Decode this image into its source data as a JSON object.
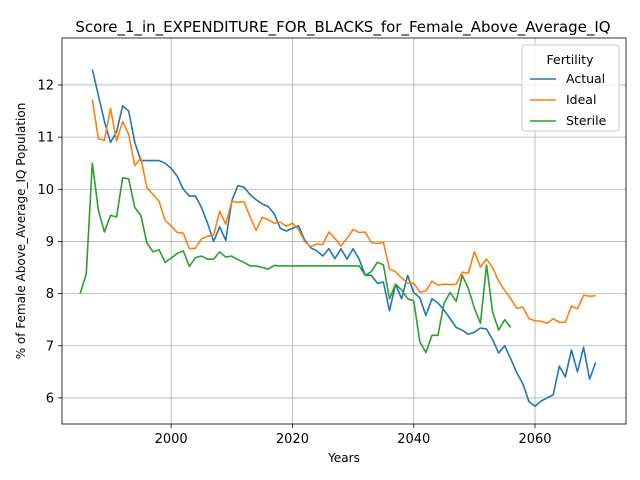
{
  "chart_data": {
    "type": "line",
    "title": "Score_1_in_EXPENDITURE_FOR_BLACKS_for_Female_Above_Average_IQ",
    "xlabel": "Years",
    "ylabel": "% of Female Above_Average_IQ Population",
    "xlim": [
      1982,
      2075
    ],
    "ylim": [
      5.5,
      12.9
    ],
    "xticks": [
      2000,
      2020,
      2040,
      2060
    ],
    "yticks": [
      6,
      7,
      8,
      9,
      10,
      11,
      12
    ],
    "grid": true,
    "legend": {
      "title": "Fertility",
      "position": "top-right"
    },
    "series": [
      {
        "name": "Actual",
        "color": "#1f77b4",
        "x": [
          1987,
          1988,
          1989,
          1990,
          1991,
          1992,
          1993,
          1994,
          1995,
          1996,
          1997,
          1998,
          1999,
          2000,
          2001,
          2002,
          2003,
          2004,
          2005,
          2006,
          2007,
          2008,
          2009,
          2010,
          2011,
          2012,
          2013,
          2014,
          2015,
          2016,
          2017,
          2018,
          2019,
          2020,
          2021,
          2022,
          2023,
          2024,
          2025,
          2026,
          2027,
          2028,
          2029,
          2030,
          2031,
          2032,
          2033,
          2034,
          2035,
          2036,
          2037,
          2038,
          2039,
          2040,
          2041,
          2042,
          2043,
          2044,
          2045,
          2046,
          2047,
          2048,
          2049,
          2050,
          2051,
          2052,
          2053,
          2054,
          2055,
          2056,
          2057,
          2058,
          2059,
          2060,
          2061,
          2062,
          2063,
          2064,
          2065,
          2066,
          2067,
          2068,
          2069,
          2070
        ],
        "values": [
          12.3,
          11.8,
          11.3,
          10.9,
          11.1,
          11.6,
          11.5,
          10.9,
          10.55,
          10.55,
          10.55,
          10.55,
          10.5,
          10.4,
          10.25,
          10.0,
          9.87,
          9.87,
          9.65,
          9.35,
          9.0,
          9.28,
          9.02,
          9.78,
          10.07,
          10.04,
          9.9,
          9.8,
          9.72,
          9.67,
          9.53,
          9.25,
          9.2,
          9.25,
          9.3,
          9.03,
          8.88,
          8.82,
          8.72,
          8.86,
          8.67,
          8.86,
          8.66,
          8.86,
          8.66,
          8.35,
          8.35,
          8.2,
          8.22,
          7.67,
          8.18,
          7.9,
          8.35,
          8.02,
          7.92,
          7.58,
          7.9,
          7.82,
          7.68,
          7.52,
          7.35,
          7.3,
          7.22,
          7.26,
          7.34,
          7.32,
          7.12,
          6.86,
          7.0,
          6.75,
          6.48,
          6.27,
          5.93,
          5.84,
          5.94,
          6.0,
          6.06,
          6.61,
          6.4,
          6.92,
          6.5,
          6.97,
          6.36,
          6.68
        ]
      },
      {
        "name": "Ideal",
        "color": "#ff7f0e",
        "x": [
          1987,
          1988,
          1989,
          1990,
          1991,
          1992,
          1993,
          1994,
          1995,
          1996,
          1997,
          1998,
          1999,
          2000,
          2001,
          2002,
          2003,
          2004,
          2005,
          2006,
          2007,
          2008,
          2009,
          2010,
          2011,
          2012,
          2013,
          2014,
          2015,
          2016,
          2017,
          2018,
          2019,
          2020,
          2021,
          2022,
          2023,
          2024,
          2025,
          2026,
          2027,
          2028,
          2029,
          2030,
          2031,
          2032,
          2033,
          2034,
          2035,
          2036,
          2037,
          2038,
          2039,
          2040,
          2041,
          2042,
          2043,
          2044,
          2045,
          2046,
          2047,
          2048,
          2049,
          2050,
          2051,
          2052,
          2053,
          2054,
          2055,
          2056,
          2057,
          2058,
          2059,
          2060,
          2061,
          2062,
          2063,
          2064,
          2065,
          2066,
          2067,
          2068,
          2069,
          2070
        ],
        "values": [
          11.72,
          10.97,
          10.94,
          11.55,
          10.93,
          11.3,
          11.05,
          10.45,
          10.6,
          10.03,
          9.9,
          9.77,
          9.4,
          9.3,
          9.17,
          9.16,
          8.86,
          8.87,
          9.05,
          9.1,
          9.12,
          9.58,
          9.33,
          9.77,
          9.75,
          9.76,
          9.48,
          9.21,
          9.46,
          9.42,
          9.35,
          9.37,
          9.29,
          9.35,
          9.23,
          9.0,
          8.9,
          8.95,
          8.94,
          9.18,
          9.06,
          8.91,
          9.06,
          9.23,
          9.17,
          9.18,
          8.98,
          8.96,
          8.98,
          8.47,
          8.42,
          8.3,
          8.2,
          8.2,
          8.03,
          8.05,
          8.24,
          8.16,
          8.18,
          8.17,
          8.18,
          8.41,
          8.39,
          8.8,
          8.51,
          8.66,
          8.5,
          8.24,
          8.06,
          7.9,
          7.72,
          7.74,
          7.52,
          7.48,
          7.47,
          7.43,
          7.52,
          7.45,
          7.45,
          7.76,
          7.71,
          7.97,
          7.95,
          7.96
        ]
      },
      {
        "name": "Sterile",
        "color": "#2ca02c",
        "x": [
          1985,
          1986,
          1987,
          1988,
          1989,
          1990,
          1991,
          1992,
          1993,
          1994,
          1995,
          1996,
          1997,
          1998,
          1999,
          2000,
          2001,
          2002,
          2003,
          2004,
          2005,
          2006,
          2007,
          2008,
          2009,
          2010,
          2011,
          2012,
          2013,
          2014,
          2015,
          2016,
          2017,
          2018,
          2019,
          2020,
          2021,
          2022,
          2023,
          2024,
          2025,
          2026,
          2027,
          2028,
          2029,
          2030,
          2031,
          2032,
          2033,
          2034,
          2035,
          2036,
          2037,
          2038,
          2039,
          2040,
          2041,
          2042,
          2043,
          2044,
          2045,
          2046,
          2047,
          2048,
          2049,
          2050,
          2051,
          2052,
          2053,
          2054,
          2055,
          2056
        ],
        "values": [
          8.0,
          8.38,
          10.5,
          9.6,
          9.18,
          9.5,
          9.47,
          10.22,
          10.2,
          9.65,
          9.5,
          8.97,
          8.8,
          8.84,
          8.6,
          8.68,
          8.77,
          8.82,
          8.52,
          8.69,
          8.72,
          8.66,
          8.66,
          8.8,
          8.7,
          8.72,
          8.65,
          8.6,
          8.53,
          8.53,
          8.5,
          8.47,
          8.54,
          8.53,
          8.53,
          8.53,
          8.53,
          8.53,
          8.53,
          8.53,
          8.53,
          8.53,
          8.53,
          8.53,
          8.53,
          8.53,
          8.53,
          8.35,
          8.42,
          8.6,
          8.55,
          7.9,
          8.18,
          8.07,
          7.9,
          7.86,
          7.08,
          6.87,
          7.2,
          7.2,
          7.82,
          8.02,
          7.85,
          8.35,
          8.1,
          7.72,
          7.43,
          8.55,
          7.65,
          7.3,
          7.5,
          7.35
        ]
      }
    ]
  }
}
